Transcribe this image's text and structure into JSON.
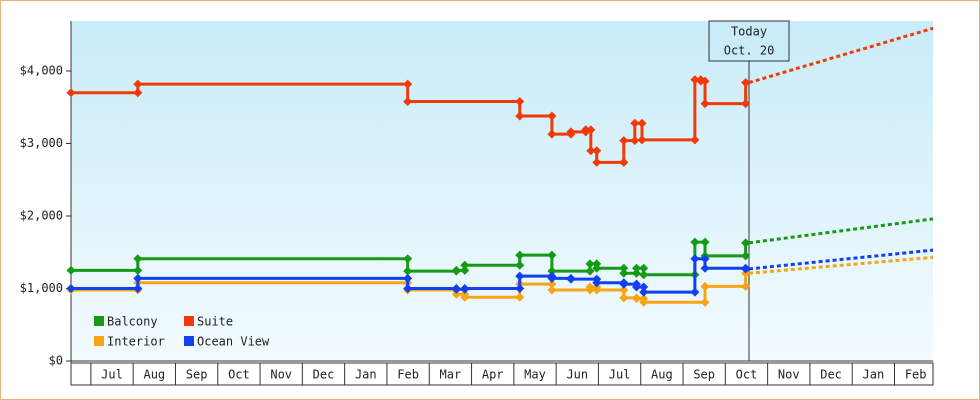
{
  "chart_data": {
    "type": "step-line",
    "xlim": [
      -0.47,
      19.91
    ],
    "xticks": [
      {
        "value": 0.5,
        "label": "Jul"
      },
      {
        "value": 1.5,
        "label": "Aug"
      },
      {
        "value": 2.5,
        "label": "Sep"
      },
      {
        "value": 3.5,
        "label": "Oct"
      },
      {
        "value": 4.5,
        "label": "Nov"
      },
      {
        "value": 5.5,
        "label": "Dec"
      },
      {
        "value": 6.5,
        "label": "Jan"
      },
      {
        "value": 7.5,
        "label": "Feb"
      },
      {
        "value": 8.5,
        "label": "Mar"
      },
      {
        "value": 9.5,
        "label": "Apr"
      },
      {
        "value": 10.5,
        "label": "May"
      },
      {
        "value": 11.5,
        "label": "Jun"
      },
      {
        "value": 12.5,
        "label": "Jul"
      },
      {
        "value": 13.5,
        "label": "Aug"
      },
      {
        "value": 14.5,
        "label": "Sep"
      },
      {
        "value": 15.5,
        "label": "Oct"
      },
      {
        "value": 16.5,
        "label": "Nov"
      },
      {
        "value": 17.5,
        "label": "Dec"
      },
      {
        "value": 18.5,
        "label": "Jan"
      },
      {
        "value": 19.5,
        "label": "Feb"
      }
    ],
    "ylim": [
      0,
      4690
    ],
    "yticks": [
      {
        "value": 0,
        "label": "$0"
      },
      {
        "value": 1000,
        "label": "$1,000"
      },
      {
        "value": 2000,
        "label": "$2,000"
      },
      {
        "value": 3000,
        "label": "$3,000"
      },
      {
        "value": 4000,
        "label": "$4,000"
      }
    ],
    "legend": "lower left",
    "annotation": {
      "x": 15.56,
      "text": [
        "Today",
        "Oct. 20"
      ]
    },
    "series": [
      {
        "name": "Balcony",
        "color": "#159a15",
        "x": [
          -0.47,
          1.11,
          7.49,
          8.64,
          8.84,
          10.14,
          10.9,
          11.8,
          11.96,
          12.6,
          12.9,
          13.07,
          14.28,
          14.52,
          15.48
        ],
        "values": [
          1250,
          1410,
          1240,
          1250,
          1320,
          1460,
          1240,
          1340,
          1280,
          1210,
          1280,
          1190,
          1640,
          1450,
          1630
        ],
        "forecast_x": [
          15.56,
          19.91
        ],
        "forecast_values": [
          1630,
          1960
        ]
      },
      {
        "name": "Suite",
        "color": "#f03a0a",
        "x": [
          -0.47,
          1.11,
          7.49,
          10.14,
          10.9,
          11.35,
          11.7,
          11.82,
          11.96,
          12.6,
          12.86,
          13.03,
          14.28,
          14.42,
          14.52,
          15.48
        ],
        "values": [
          3700,
          3820,
          3580,
          3380,
          3130,
          3160,
          3190,
          2900,
          2740,
          3040,
          3280,
          3050,
          3880,
          3860,
          3550,
          3840
        ],
        "forecast_x": [
          15.56,
          19.91
        ],
        "forecast_values": [
          3840,
          4590
        ]
      },
      {
        "name": "Interior",
        "color": "#f7a416",
        "x": [
          -0.47,
          1.11,
          7.49,
          8.64,
          8.84,
          10.14,
          10.9,
          11.8,
          11.96,
          12.6,
          12.9,
          13.07,
          14.52,
          15.48
        ],
        "values": [
          980,
          1080,
          980,
          920,
          880,
          1060,
          980,
          1020,
          980,
          870,
          860,
          810,
          1030,
          1210
        ],
        "forecast_x": [
          15.56,
          19.91
        ],
        "forecast_values": [
          1210,
          1430
        ]
      },
      {
        "name": "Ocean View",
        "color": "#1240f0",
        "x": [
          -0.47,
          1.11,
          7.49,
          8.64,
          8.84,
          10.14,
          10.9,
          11.35,
          11.96,
          12.6,
          12.9,
          13.07,
          14.28,
          14.52,
          15.48
        ],
        "values": [
          1000,
          1140,
          1000,
          990,
          1000,
          1170,
          1140,
          1130,
          1080,
          1060,
          1020,
          950,
          1410,
          1280,
          1270
        ],
        "forecast_x": [
          15.56,
          19.91
        ],
        "forecast_values": [
          1270,
          1530
        ]
      }
    ]
  }
}
